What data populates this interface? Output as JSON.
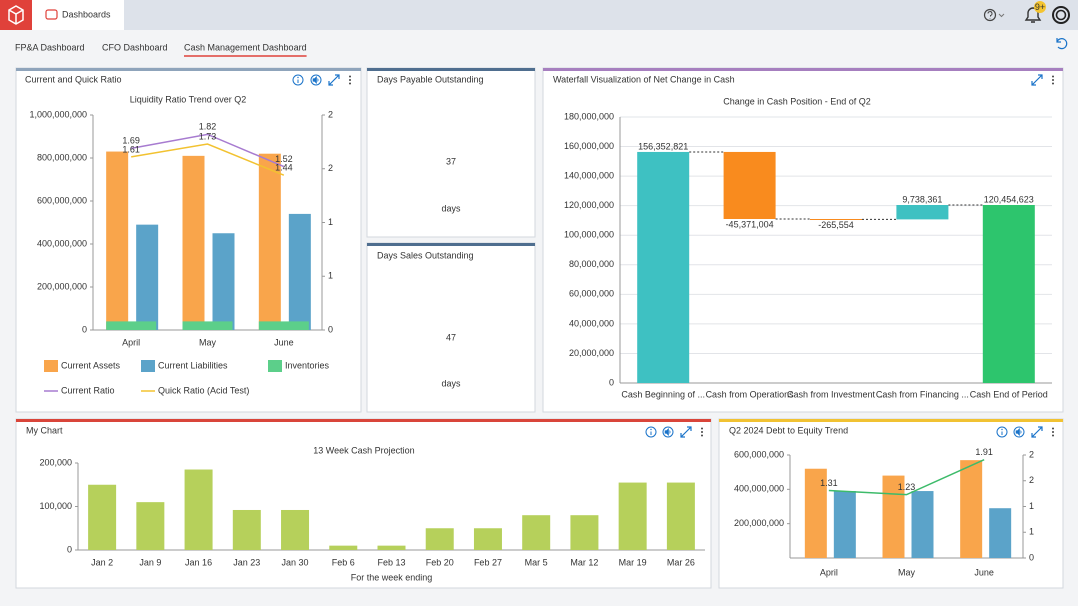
{
  "header": {
    "tab": "Dashboards",
    "badge": "9+"
  },
  "tabs": {
    "items": [
      "FP&A Dashboard",
      "CFO Dashboard",
      "Cash Management Dashboard"
    ],
    "active": 2
  },
  "widgets": [
    {
      "title": "Current and Quick Ratio",
      "chart_data": {
        "type": "combo",
        "title": "Liquidity Ratio Trend over Q2",
        "categories": [
          "April",
          "May",
          "June"
        ],
        "series": [
          {
            "name": "Current Assets",
            "type": "bar",
            "color": "#f9a54b",
            "values": [
              830000000,
              810000000,
              820000000
            ]
          },
          {
            "name": "Current Liabilities",
            "type": "bar",
            "color": "#5ba3c9",
            "values": [
              490000000,
              450000000,
              540000000
            ]
          },
          {
            "name": "Inventories",
            "type": "bar",
            "color": "#5ccf8a",
            "values": [
              40000000,
              40000000,
              40000000
            ]
          },
          {
            "name": "Current Ratio",
            "type": "line",
            "axis": "y2",
            "color": "#a77bd0",
            "values": [
              1.69,
              1.82,
              1.52
            ]
          },
          {
            "name": "Quick Ratio (Acid Test)",
            "type": "line",
            "axis": "y2",
            "color": "#f2c230",
            "values": [
              1.61,
              1.73,
              1.44
            ]
          }
        ],
        "ylim": [
          0,
          1000000000
        ],
        "yticks": [
          0,
          {
            "value": 200000000,
            "label": "200,000,000"
          },
          {
            "value": 400000000,
            "label": "400,000,000"
          },
          {
            "value": 600000000,
            "label": "600,000,000"
          },
          {
            "value": 800000000,
            "label": "800,000,000"
          },
          {
            "value": 1000000000,
            "label": "1,000,000,000"
          }
        ],
        "y2lim": [
          0,
          2
        ],
        "y2ticks": [
          0,
          {
            "value": 0.5,
            "label": "1"
          },
          1,
          {
            "value": 1.5,
            "label": "2"
          },
          2
        ],
        "legend": "bottom"
      }
    },
    {
      "title": "Days Payable Outstanding",
      "value": 37,
      "unit": "days"
    },
    {
      "title": "Days Sales Outstanding",
      "value": 47,
      "unit": "days"
    },
    {
      "title": "Waterfall Visualization of Net Change in Cash",
      "chart_data": {
        "type": "waterfall",
        "title": "Change in Cash Position - End of Q2",
        "categories": [
          "Cash Beginning of ...",
          "Cash from Operations",
          "Cash from Investment ...",
          "Cash from Financing ...",
          "Cash End of Period"
        ],
        "values": [
          156352821,
          -45371004,
          -265554,
          9738361,
          120454623
        ],
        "value_labels": [
          "156,352,821",
          "-45,371,004",
          "-265,554",
          "9,738,361",
          "120,454,623"
        ],
        "colors": [
          "#3ec1c2",
          "#f98b1e",
          "#f98b1e",
          "#3ec1c2",
          "#2dc56d"
        ],
        "ylim": [
          0,
          180000000
        ],
        "yticks": [
          0,
          {
            "value": 20000000,
            "label": "20,000,000"
          },
          {
            "value": 40000000,
            "label": "40,000,000"
          },
          {
            "value": 60000000,
            "label": "60,000,000"
          },
          {
            "value": 80000000,
            "label": "80,000,000"
          },
          {
            "value": 100000000,
            "label": "100,000,000"
          },
          {
            "value": 120000000,
            "label": "120,000,000"
          },
          {
            "value": 140000000,
            "label": "140,000,000"
          },
          {
            "value": 160000000,
            "label": "160,000,000"
          },
          {
            "value": 180000000,
            "label": "180,000,000"
          }
        ],
        "grid": true
      }
    },
    {
      "title": "My Chart",
      "chart_data": {
        "type": "bar",
        "title": "13 Week Cash Projection",
        "x_label": "For the week ending",
        "categories": [
          "Jan 2",
          "Jan 9",
          "Jan 16",
          "Jan 23",
          "Jan 30",
          "Feb 6",
          "Feb 13",
          "Feb 20",
          "Feb 27",
          "Mar 5",
          "Mar 12",
          "Mar 19",
          "Mar 26"
        ],
        "values": [
          150000,
          110000,
          185000,
          92000,
          92000,
          10000,
          10000,
          50000,
          50000,
          80000,
          80000,
          155000,
          155000
        ],
        "color": "#b6d05b",
        "ylim": [
          0,
          200000
        ],
        "yticks": [
          0,
          {
            "value": 100000,
            "label": "100,000"
          },
          {
            "value": 200000,
            "label": "200,000"
          }
        ]
      }
    },
    {
      "title": "Q2 2024 Debt to Equity Trend",
      "chart_data": {
        "type": "combo",
        "categories": [
          "April",
          "May",
          "June"
        ],
        "series": [
          {
            "type": "bar",
            "color": "#f9a54b",
            "values": [
              520000000,
              480000000,
              570000000
            ]
          },
          {
            "type": "bar",
            "color": "#5ba3c9",
            "values": [
              390000000,
              390000000,
              290000000
            ]
          },
          {
            "type": "line",
            "axis": "y2",
            "color": "#3dbb6a",
            "values": [
              1.31,
              1.23,
              1.91
            ]
          }
        ],
        "ylim": [
          0,
          600000000
        ],
        "yticks": [
          {
            "value": 200000000,
            "label": "200,000,000"
          },
          {
            "value": 400000000,
            "label": "400,000,000"
          },
          {
            "value": 600000000,
            "label": "600,000,000"
          }
        ],
        "y2lim": [
          0,
          2
        ],
        "y2ticks": [
          0,
          {
            "value": 0.5,
            "label": "1"
          },
          1,
          {
            "value": 1.5,
            "label": "2"
          },
          2
        ]
      }
    }
  ]
}
